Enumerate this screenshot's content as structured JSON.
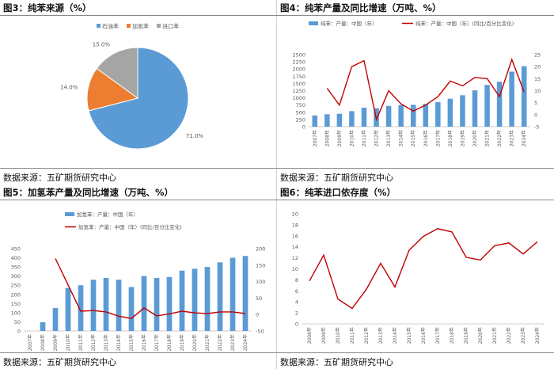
{
  "source_label": "数据来源：五矿期货研究中心",
  "colors": {
    "blue": "#5b9bd5",
    "orange": "#ed7d31",
    "gray": "#a5a5a5",
    "red": "#c00000",
    "axis": "#999999",
    "text": "#595959"
  },
  "chart_data": [
    {
      "id": "fig3",
      "title": "图3：纯苯来源（%）",
      "type": "pie",
      "legend_position": "top",
      "slices": [
        {
          "name": "石油苯",
          "value": 71.0,
          "label": "71.0%",
          "color": "#5b9bd5"
        },
        {
          "name": "加氢苯",
          "value": 14.0,
          "label": "14.0%",
          "color": "#ed7d31"
        },
        {
          "name": "进口苯",
          "value": 15.0,
          "label": "15.0%",
          "color": "#a5a5a5"
        }
      ]
    },
    {
      "id": "fig4",
      "title": "图4：纯苯产量及同比增速（万吨、%）",
      "type": "bar+line",
      "legend_position": "top",
      "categories": [
        "2007年",
        "2008年",
        "2009年",
        "2010年",
        "2011年",
        "2012年",
        "2013年",
        "2014年",
        "2015年",
        "2016年",
        "2017年",
        "2018年",
        "2019年",
        "2020年",
        "2021年",
        "2022年",
        "2023年",
        "2024年"
      ],
      "bar_series": {
        "name": "纯苯：产量：中国（年）",
        "values": [
          390,
          430,
          450,
          540,
          660,
          640,
          720,
          750,
          760,
          790,
          850,
          970,
          1090,
          1260,
          1450,
          1560,
          1910,
          2100
        ]
      },
      "line_series": {
        "name": "纯苯：产量：中国（年）(同比/百分比变化)",
        "values": [
          null,
          11,
          4,
          20,
          22.5,
          -2,
          10,
          4.5,
          1.5,
          4,
          7.5,
          14,
          12,
          15.5,
          15,
          7.5,
          23,
          9.5
        ]
      },
      "y_left": {
        "min": 0,
        "max": 2500,
        "ticks": [
          0,
          250,
          500,
          750,
          1000,
          1250,
          1500,
          1750,
          2000,
          2250,
          2500
        ]
      },
      "y_right": {
        "min": -5,
        "max": 25,
        "ticks": [
          -5,
          0,
          5,
          10,
          15,
          20,
          25
        ]
      }
    },
    {
      "id": "fig5",
      "title": "图5：加氢苯产量及同比增速（万吨、%）",
      "type": "bar+line",
      "legend_position": "top",
      "categories": [
        "2007年",
        "2008年",
        "2009年",
        "2010年",
        "2011年",
        "2012年",
        "2013年",
        "2014年",
        "2015年",
        "2016年",
        "2017年",
        "2018年",
        "2019年",
        "2020年",
        "2021年",
        "2022年",
        "2023年",
        "2024年"
      ],
      "bar_series": {
        "name": "加氢苯：产量：中国（年）",
        "values": [
          0,
          48,
          125,
          235,
          250,
          280,
          290,
          280,
          240,
          300,
          290,
          295,
          330,
          340,
          350,
          375,
          400,
          410
        ]
      },
      "line_series": {
        "name": "加氢苯：产量：中国（年）(同比/百分比变化)",
        "values": [
          null,
          null,
          170,
          90,
          10,
          12,
          8,
          -5,
          -12,
          20,
          -4,
          2,
          10,
          5,
          3,
          8,
          8,
          3
        ]
      },
      "y_left": {
        "min": 0,
        "max": 450,
        "ticks": [
          0,
          50,
          100,
          150,
          200,
          250,
          300,
          350,
          400,
          450
        ]
      },
      "y_right": {
        "min": -50,
        "max": 200,
        "ticks": [
          -50,
          0,
          50,
          100,
          150,
          200
        ]
      }
    },
    {
      "id": "fig6",
      "title": "图6：纯苯进口依存度（%）",
      "type": "line",
      "categories": [
        "2008年",
        "2009年",
        "2010年",
        "2011年",
        "2012年",
        "2013年",
        "2014年",
        "2015年",
        "2016年",
        "2017年",
        "2018年",
        "2019年",
        "2020年",
        "2021年",
        "2022年",
        "2023年",
        "2024年"
      ],
      "series": [
        {
          "values": [
            7.8,
            12.5,
            4.5,
            2.8,
            6.3,
            11,
            6.7,
            13.4,
            15.9,
            17.3,
            16.7,
            12.1,
            11.6,
            14.2,
            14.7,
            12.7,
            14.9
          ],
          "color": "#c00000"
        }
      ],
      "y": {
        "min": 0,
        "max": 20,
        "ticks": [
          0,
          2,
          4,
          6,
          8,
          10,
          12,
          14,
          16,
          18,
          20
        ]
      }
    }
  ]
}
